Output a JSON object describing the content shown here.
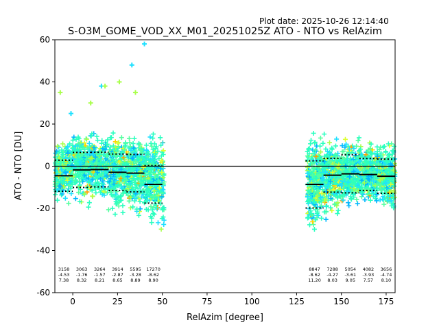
{
  "plot_date": "Plot date: 2025-10-26 12:14:40",
  "chart_data": {
    "type": "scatter",
    "title": "S-O3M_GOME_VOD_XX_M01_20251025Z ATO - NTO vs RelAzim",
    "xlabel": "RelAzim [degree]",
    "ylabel": "ATO - NTO [DU]",
    "xlim": [
      -10,
      180
    ],
    "ylim": [
      -60,
      60
    ],
    "xticks": [
      0,
      25,
      50,
      75,
      100,
      125,
      150,
      175
    ],
    "yticks": [
      -60,
      -40,
      -20,
      0,
      20,
      40,
      60
    ],
    "colors": [
      "#00b8ff",
      "#1ee0ff",
      "#2bffc0",
      "#55ffa0",
      "#a8ff4a",
      "#ddff30",
      "#ffd400",
      "#ffa000"
    ],
    "clusters": [
      {
        "x_range": [
          -10,
          51
        ],
        "median": [
          -4,
          2,
          1,
          -3,
          -2,
          -8
        ],
        "upper": [
          16,
          20,
          21,
          22,
          20,
          18
        ],
        "lower": [
          -22,
          -25,
          -28,
          -30,
          -32,
          -40
        ]
      },
      {
        "x_range": [
          131,
          180
        ],
        "median": [
          -8,
          -4,
          -3,
          -4,
          -5
        ],
        "upper": [
          22,
          18,
          20,
          18,
          16
        ],
        "lower": [
          -42,
          -28,
          -26,
          -22,
          -30
        ]
      }
    ],
    "outliers": [
      [
        -7,
        35
      ],
      [
        16,
        38
      ],
      [
        26,
        40
      ],
      [
        33,
        48
      ],
      [
        35,
        35
      ],
      [
        40,
        58
      ],
      [
        18,
        38
      ],
      [
        -1,
        25
      ],
      [
        10,
        30
      ]
    ],
    "zero_line": 0,
    "bins": [
      {
        "x_start": -10,
        "x_end": 0,
        "mean": -4.53,
        "upper": 2.85,
        "lower": -11.91,
        "count": "3158",
        "mean_label": "-4.53",
        "std_label": "7.38"
      },
      {
        "x_start": 0,
        "x_end": 10,
        "mean": -1.76,
        "upper": 6.56,
        "lower": -10.08,
        "count": "3063",
        "mean_label": "-1.76",
        "std_label": "8.32"
      },
      {
        "x_start": 10,
        "x_end": 20,
        "mean": -1.57,
        "upper": 6.64,
        "lower": -9.78,
        "count": "3264",
        "mean_label": "-1.57",
        "std_label": "8.21"
      },
      {
        "x_start": 20,
        "x_end": 30,
        "mean": -2.87,
        "upper": 5.78,
        "lower": -11.52,
        "count": "3914",
        "mean_label": "-2.87",
        "std_label": "8.65"
      },
      {
        "x_start": 30,
        "x_end": 40,
        "mean": -3.28,
        "upper": 5.61,
        "lower": -12.17,
        "count": "5595",
        "mean_label": "-3.28",
        "std_label": "8.89"
      },
      {
        "x_start": 40,
        "x_end": 50,
        "mean": -8.62,
        "upper": 0.28,
        "lower": -17.52,
        "count": "17270",
        "mean_label": "-8.62",
        "std_label": "8.90"
      },
      {
        "x_start": 130,
        "x_end": 140,
        "mean": -8.62,
        "upper": 2.58,
        "lower": -19.82,
        "count": "8847",
        "mean_label": "-8.62",
        "std_label": "11.20"
      },
      {
        "x_start": 140,
        "x_end": 150,
        "mean": -4.27,
        "upper": 3.76,
        "lower": -12.3,
        "count": "7288",
        "mean_label": "-4.27",
        "std_label": "8.03"
      },
      {
        "x_start": 150,
        "x_end": 160,
        "mean": -3.61,
        "upper": 5.44,
        "lower": -12.66,
        "count": "5054",
        "mean_label": "-3.61",
        "std_label": "9.05"
      },
      {
        "x_start": 160,
        "x_end": 170,
        "mean": -3.93,
        "upper": 3.64,
        "lower": -11.5,
        "count": "4082",
        "mean_label": "-3.93",
        "std_label": "7.57"
      },
      {
        "x_start": 170,
        "x_end": 180,
        "mean": -4.74,
        "upper": 3.36,
        "lower": -12.84,
        "count": "3656",
        "mean_label": "-4.74",
        "std_label": "8.10"
      }
    ]
  }
}
